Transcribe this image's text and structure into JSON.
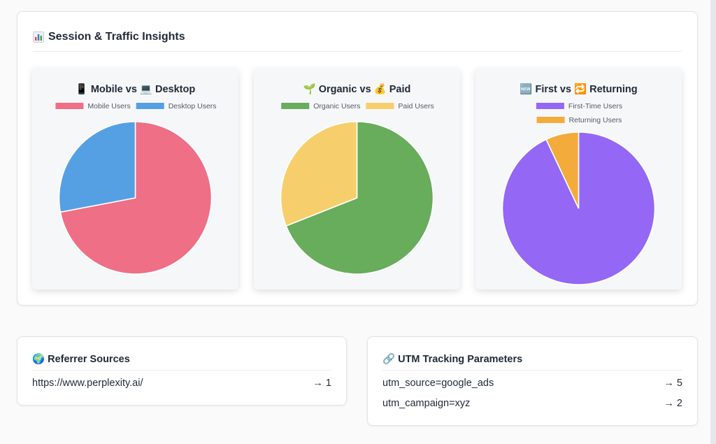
{
  "insights": {
    "title_icon": "bar-chart-icon",
    "title": "Session & Traffic Insights"
  },
  "charts": [
    {
      "title": "📱 Mobile vs 💻 Desktop",
      "title_icons": [
        "mobile-phone-icon",
        "laptop-icon"
      ]
    },
    {
      "title": "🌱 Organic vs 💰 Paid",
      "title_icons": [
        "seedling-icon",
        "money-bag-icon"
      ]
    },
    {
      "title": "🆕 First vs 🔁 Returning",
      "title_icons": [
        "new-badge-icon",
        "repeat-icon"
      ]
    }
  ],
  "chart_data": [
    {
      "type": "pie",
      "legend": "top",
      "labels": [
        "Mobile Users",
        "Desktop Users"
      ],
      "values": [
        72,
        28
      ],
      "colors": [
        "#ee6f86",
        "#55a0e3"
      ]
    },
    {
      "type": "pie",
      "legend": "top",
      "labels": [
        "Organic Users",
        "Paid Users"
      ],
      "values": [
        69,
        31
      ],
      "colors": [
        "#67ad5b",
        "#f6cf6c"
      ]
    },
    {
      "type": "pie",
      "legend": "top",
      "labels": [
        "First-Time Users",
        "Returning Users"
      ],
      "values": [
        93,
        7
      ],
      "colors": [
        "#9467f5",
        "#f3ab3b"
      ]
    }
  ],
  "referrers": {
    "title_icon": "globe-icon",
    "title": "Referrer Sources",
    "rows": [
      {
        "label": "https://www.perplexity.ai/",
        "count": "→ 1"
      }
    ]
  },
  "utm": {
    "title_icon": "link-icon",
    "title": "UTM Tracking Parameters",
    "rows": [
      {
        "label": "utm_source=google_ads",
        "count": "→ 5"
      },
      {
        "label": "utm_campaign=xyz",
        "count": "→ 2"
      }
    ]
  }
}
